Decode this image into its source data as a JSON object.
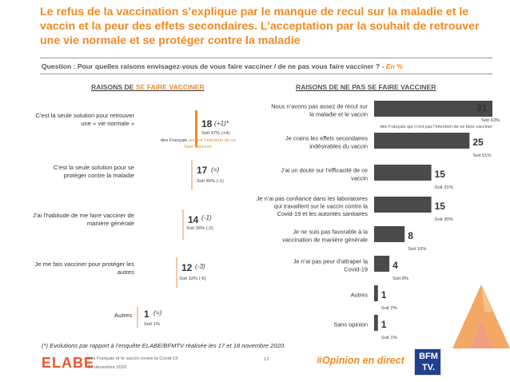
{
  "title": "Le refus de la vaccination s’explique par le manque de recul sur la maladie et le vaccin et la peur des effets secondaires. L’acceptation par la souhait de retrouver une vie normale et se protéger contre la maladie",
  "question": {
    "text": "Question : Pour quelles raisons envisagez-vous de vous faire vacciner / de ne pas vous faire vacciner ? -",
    "suffix": "En %"
  },
  "left_section": {
    "heading_prefix": "RAISONS DE",
    "heading_accent": "SE FAIRE VACCINER",
    "items": [
      {
        "label": "C’est la seule solution pour retrouver une « vie normale »",
        "value": "18",
        "evolution": "(+1)*",
        "soit": "Soit 47% (+4)",
        "note_1": "des Français",
        "note_2": "qui ont l’intention de se faire vacciner"
      },
      {
        "label": "C’est la seule solution pour se protéger contre la maladie",
        "value": "17",
        "evolution": "(=)",
        "soit": "Soit 46% (-1)"
      },
      {
        "label": "J’ai l’habitude de me faire vacciner de manière générale",
        "value": "14",
        "evolution": "(-1)",
        "soit": "Soit 36% (-2)"
      },
      {
        "label": "Je me fais vacciner pour protéger les autres",
        "value": "12",
        "evolution": "(-3)",
        "soit": "Soit 32% (-6)"
      },
      {
        "label": "Autres",
        "value": "1",
        "evolution": "(=)",
        "soit": "Soit 1%"
      }
    ]
  },
  "chart_data": {
    "type": "bar",
    "title": "RAISONS DE NE PAS SE FAIRE VACCINER",
    "categories": [
      "Nous n’avons pas assez de recul sur la maladie et le vaccin",
      "Je crains les effets secondaires indésirables du vaccin",
      "J’ai un doute sur l’efficacité de ce vaccin",
      "Je n’ai pas confiance dans les laboratoires qui travaillent sur le vaccin contre la Covid-19 et les autorités sanitaires",
      "Je ne suis pas favorable à la vaccination de manière générale",
      "Je n’ai pas peur d’attraper la Covid-19",
      "Autres",
      "Sans opinion"
    ],
    "values": [
      31,
      25,
      15,
      15,
      8,
      4,
      1,
      1
    ],
    "soit": [
      "Soit 63%",
      "Soit 51%",
      "Soit 31%",
      "Soit 30%",
      "Soit 16%",
      "Soit 8%",
      "Soit 2%",
      "Soit 1%"
    ],
    "note": "des Français qui n’ont pas l’intention de se faire vacciner",
    "bar_color": "#4a4a4a",
    "orientation": "horizontal",
    "xlim": [
      0,
      31
    ]
  },
  "right_section": {
    "heading_prefix": "RAISONS DE",
    "heading_accent": "NE PAS SE FAIRE VACCINER"
  },
  "footer": {
    "footnote": "(*) Evolutions par rapport à l’enquête ELABE/BFMTV réalisée les 17 et 18 novembre 2020.",
    "logo": "ELABE",
    "subtitle_1": "Les Français et le vaccin contre la Covid-19",
    "subtitle_2": "17 décembre 2020",
    "page": "12",
    "hashtag": "#Opinion en direct",
    "bfm_line1": "BFM",
    "bfm_line2": "TV."
  },
  "colors": {
    "accent": "#F08A24",
    "bar": "#4a4a4a",
    "light_bar": "#F4C8A4"
  }
}
